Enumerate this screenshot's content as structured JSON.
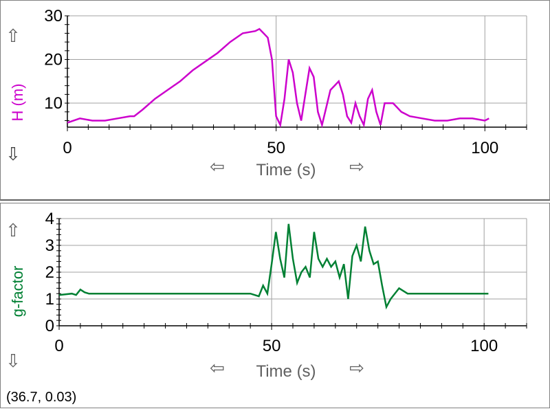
{
  "chart_data": [
    {
      "type": "line",
      "ylabel": "H (m)",
      "xlabel": "Time (s)",
      "xlim": [
        0,
        110
      ],
      "ylim": [
        4.5,
        30
      ],
      "xticks": [
        "0",
        "50",
        "100"
      ],
      "yticks": [
        "10",
        "20",
        "30"
      ],
      "color": "#cc00cc",
      "grid": true,
      "series": [
        {
          "x": [
            0,
            3,
            6,
            9,
            12,
            15,
            16,
            18,
            21,
            24,
            27,
            30,
            33,
            36,
            39,
            42,
            45,
            46,
            47,
            48,
            49,
            50,
            51,
            52,
            53,
            54,
            55,
            56,
            57,
            58,
            59,
            60,
            61,
            62,
            63,
            64,
            65,
            66,
            67,
            68,
            69,
            70,
            71,
            72,
            73,
            74,
            75,
            76,
            77,
            78,
            79,
            80,
            81,
            82,
            85,
            88,
            91,
            94,
            97,
            100,
            101
          ],
          "y": [
            5.5,
            6.5,
            6,
            6,
            6.5,
            7,
            7,
            8.5,
            11,
            13,
            15,
            17.5,
            19.5,
            21.5,
            24,
            26,
            26.5,
            27,
            26,
            25,
            20,
            7,
            5,
            11,
            20,
            17,
            10,
            6,
            12,
            18,
            16,
            8,
            5,
            9,
            13,
            14,
            15,
            12,
            7,
            5.5,
            10,
            7,
            5,
            11,
            13,
            8,
            5,
            10,
            10,
            10,
            9,
            8,
            7.5,
            7,
            6.5,
            6,
            6,
            6.5,
            6.5,
            6,
            6.5
          ]
        }
      ]
    },
    {
      "type": "line",
      "ylabel": "g-factor",
      "xlabel": "Time (s)",
      "xlim": [
        0,
        110
      ],
      "ylim": [
        0,
        4
      ],
      "xticks": [
        "0",
        "50",
        "100"
      ],
      "yticks": [
        "0",
        "1",
        "2",
        "3",
        "4"
      ],
      "color": "#008033",
      "grid": true,
      "series": [
        {
          "x": [
            0,
            3,
            4,
            5,
            6,
            7,
            10,
            15,
            20,
            25,
            30,
            35,
            40,
            45,
            47,
            48,
            49,
            50,
            51,
            52,
            53,
            54,
            55,
            56,
            57,
            58,
            59,
            60,
            61,
            62,
            63,
            64,
            65,
            66,
            67,
            68,
            69,
            70,
            71,
            72,
            73,
            74,
            75,
            76,
            77,
            78,
            80,
            82,
            85,
            88,
            90,
            95,
            100,
            101
          ],
          "y": [
            1.15,
            1.2,
            1.15,
            1.35,
            1.25,
            1.2,
            1.2,
            1.2,
            1.2,
            1.2,
            1.2,
            1.2,
            1.2,
            1.2,
            1.1,
            1.5,
            1.2,
            2.3,
            3.5,
            2.5,
            1.8,
            3.8,
            2.5,
            1.6,
            2,
            2.2,
            1.8,
            3.5,
            2.5,
            2.2,
            2.5,
            2.2,
            2.4,
            1.8,
            2.3,
            1.0,
            2.6,
            3.0,
            2.4,
            3.7,
            2.8,
            2.3,
            2.4,
            1.5,
            0.7,
            1.0,
            1.4,
            1.2,
            1.2,
            1.2,
            1.2,
            1.2,
            1.2,
            1.2
          ]
        }
      ]
    }
  ],
  "nav": {
    "arrow_up": "⇧",
    "arrow_down": "⇩",
    "arrow_left": "⇦",
    "arrow_right": "⇨"
  },
  "cursor_readout": "(36.7, 0.03)"
}
